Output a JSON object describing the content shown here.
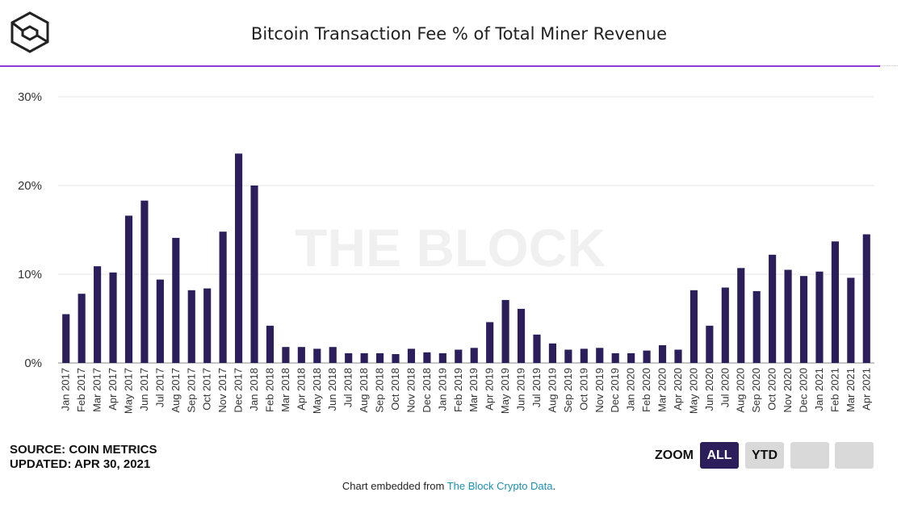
{
  "header": {
    "title": "Bitcoin Transaction Fee % of Total Miner Revenue"
  },
  "footer": {
    "source_line": "SOURCE: COIN METRICS",
    "updated_line": "UPDATED: APR 30, 2021",
    "zoom_label": "ZOOM",
    "zoom_buttons": [
      "ALL",
      "YTD"
    ],
    "embed_prefix": "Chart embedded from ",
    "embed_link": "The Block Crypto Data",
    "embed_suffix": "."
  },
  "watermark": "THE BLOCK",
  "colors": {
    "bar": "#2b1e5b",
    "accent_rule": "#8a3fd1",
    "link": "#1d8fb0"
  },
  "chart_data": {
    "type": "bar",
    "title": "Bitcoin Transaction Fee % of Total Miner Revenue",
    "xlabel": "",
    "ylabel": "",
    "ylim": [
      0,
      30
    ],
    "yticks": [
      "0%",
      "10%",
      "20%",
      "30%"
    ],
    "grid": true,
    "categories": [
      "Jan 2017",
      "Feb 2017",
      "Mar 2017",
      "Apr 2017",
      "May 2017",
      "Jun 2017",
      "Jul 2017",
      "Aug 2017",
      "Sep 2017",
      "Oct 2017",
      "Nov 2017",
      "Dec 2017",
      "Jan 2018",
      "Feb 2018",
      "Mar 2018",
      "Apr 2018",
      "May 2018",
      "Jun 2018",
      "Jul 2018",
      "Aug 2018",
      "Sep 2018",
      "Oct 2018",
      "Nov 2018",
      "Dec 2018",
      "Jan 2019",
      "Feb 2019",
      "Mar 2019",
      "Apr 2019",
      "May 2019",
      "Jun 2019",
      "Jul 2019",
      "Aug 2019",
      "Sep 2019",
      "Oct 2019",
      "Nov 2019",
      "Dec 2019",
      "Jan 2020",
      "Feb 2020",
      "Mar 2020",
      "Apr 2020",
      "May 2020",
      "Jun 2020",
      "Jul 2020",
      "Aug 2020",
      "Sep 2020",
      "Oct 2020",
      "Nov 2020",
      "Dec 2020",
      "Jan 2021",
      "Feb 2021",
      "Mar 2021",
      "Apr 2021"
    ],
    "values": [
      5.5,
      7.8,
      10.9,
      10.2,
      16.6,
      18.3,
      9.4,
      14.1,
      8.2,
      8.4,
      14.8,
      23.6,
      20.0,
      4.2,
      1.8,
      1.8,
      1.6,
      1.8,
      1.1,
      1.1,
      1.1,
      1.0,
      1.6,
      1.2,
      1.1,
      1.5,
      1.7,
      4.6,
      7.1,
      6.1,
      3.2,
      2.2,
      1.5,
      1.6,
      1.7,
      1.1,
      1.1,
      1.4,
      2.0,
      1.5,
      8.2,
      4.2,
      8.5,
      10.7,
      8.1,
      12.2,
      10.5,
      9.8,
      10.3,
      13.7,
      9.6,
      14.5
    ]
  }
}
